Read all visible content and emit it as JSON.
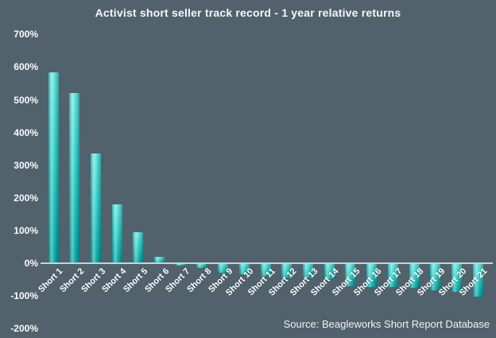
{
  "chart_data": {
    "type": "bar",
    "title": "Activist short seller track record - 1 year relative returns",
    "source": "Source: Beagleworks Short Report Database",
    "categories": [
      "Short 1",
      "Short 2",
      "Short 3",
      "Short 4",
      "Short 5",
      "Short 6",
      "Short 7",
      "Short 8",
      "Short 9",
      "Short 10",
      "Short 11",
      "Short 12",
      "Short 13",
      "Short 14",
      "Short 15",
      "Short 16",
      "Short 17",
      "Short 18",
      "Short 19",
      "Short 20",
      "Short 21"
    ],
    "values": [
      585,
      520,
      335,
      180,
      95,
      20,
      -8,
      -15,
      -29,
      -34,
      -38,
      -43,
      -45,
      -49,
      -71,
      -72,
      -72,
      -75,
      -82,
      -88,
      -102
    ],
    "xlabel": "",
    "ylabel": "",
    "ylim": [
      -200,
      700
    ],
    "yticks": [
      {
        "value": 700,
        "label": "700%"
      },
      {
        "value": 600,
        "label": "600%"
      },
      {
        "value": 500,
        "label": "500%"
      },
      {
        "value": 400,
        "label": "400%"
      },
      {
        "value": 300,
        "label": "300%"
      },
      {
        "value": 200,
        "label": "200%"
      },
      {
        "value": 100,
        "label": "100%"
      },
      {
        "value": 0,
        "label": "0%"
      },
      {
        "value": -100,
        "label": "-100%"
      },
      {
        "value": -200,
        "label": "-200%"
      }
    ],
    "grid": false,
    "legend": "none",
    "colors": {
      "background": "#51626d",
      "bar_gradient_top": "#62e7df",
      "bar_gradient_bottom": "#00a5a2",
      "axis_line": "#ccd2d6",
      "text": "#ffffff"
    }
  }
}
